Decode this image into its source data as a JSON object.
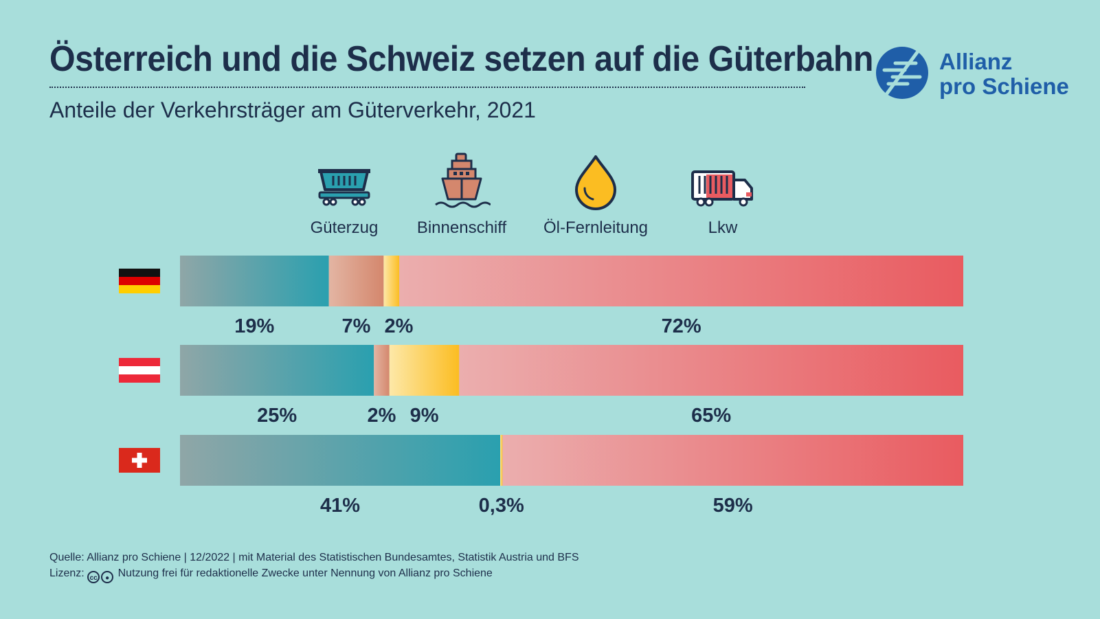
{
  "header": {
    "title": "Österreich und die Schweiz setzen auf die Güterbahn",
    "subtitle": "Anteile der Verkehrsträger am Güterverkehr, 2021"
  },
  "logo": {
    "line1": "Allianz",
    "line2": "pro Schiene",
    "color": "#1f5ea8"
  },
  "legend": [
    {
      "label": "Güterzug",
      "icon": "freight-wagon-icon"
    },
    {
      "label": "Binnenschiff",
      "icon": "ship-icon"
    },
    {
      "label": "Öl-Fernleitung",
      "icon": "oil-drop-icon"
    },
    {
      "label": "Lkw",
      "icon": "truck-icon"
    }
  ],
  "chart_data": {
    "type": "bar",
    "orientation": "horizontal-stacked-100",
    "title": "Österreich und die Schweiz setzen auf die Güterbahn",
    "subtitle": "Anteile der Verkehrsträger am Güterverkehr, 2021",
    "categories": [
      "Deutschland",
      "Österreich",
      "Schweiz"
    ],
    "category_flags": [
      "flag-germany-icon",
      "flag-austria-icon",
      "flag-switzerland-icon"
    ],
    "series": [
      {
        "name": "Güterzug",
        "values": [
          19,
          25,
          41
        ],
        "labels": [
          "19%",
          "25%",
          "41%"
        ],
        "color_start": "#8fa6a7",
        "color_end": "#2aa0af"
      },
      {
        "name": "Binnenschiff",
        "values": [
          7,
          2,
          0
        ],
        "labels": [
          "7%",
          "2%",
          ""
        ],
        "color_start": "#e3b5a3",
        "color_end": "#d4876d"
      },
      {
        "name": "Öl-Fernleitung",
        "values": [
          2,
          9,
          0.3
        ],
        "labels": [
          "2%",
          "9%",
          "0,3%"
        ],
        "color_start": "#fde8a8",
        "color_end": "#fbbd22"
      },
      {
        "name": "Lkw",
        "values": [
          72,
          65,
          59
        ],
        "labels": [
          "72%",
          "65%",
          "59%"
        ],
        "color_start": "#ebaeae",
        "color_end": "#e95b60"
      }
    ],
    "xlim": [
      0,
      100
    ],
    "grid": false,
    "legend_position": "top"
  },
  "footer": {
    "source": "Quelle: Allianz pro Schiene | 12/2022 | mit Material des Statistischen Bundesamtes, Statistik Austria und BFS",
    "license_label": "Lizenz:",
    "cc_text": "cc",
    "license_text": "Nutzung frei für redaktionelle Zwecke unter Nennung von Allianz pro Schiene"
  }
}
